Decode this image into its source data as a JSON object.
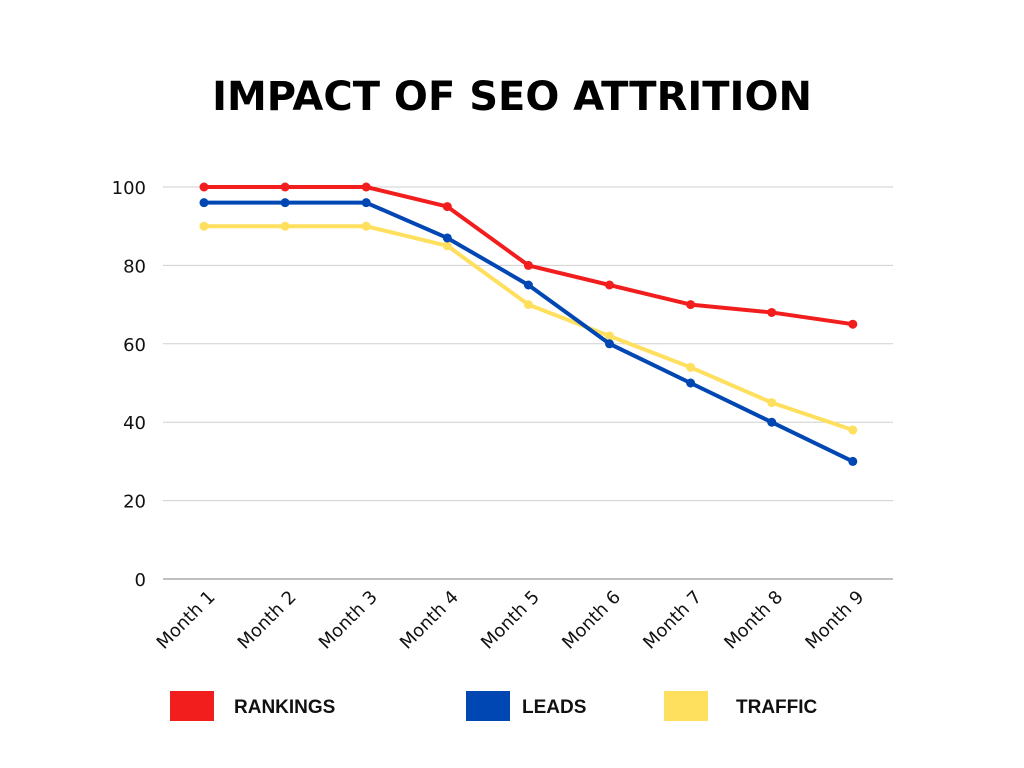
{
  "chart_data": {
    "type": "line",
    "title": "IMPACT OF SEO ATTRITION",
    "xlabel": "",
    "ylabel": "",
    "ylim": [
      0,
      100
    ],
    "yticks": [
      "0",
      "20",
      "40",
      "60",
      "80",
      "100"
    ],
    "grid": true,
    "legend_position": "bottom",
    "categories": [
      "Month 1",
      "Month 2",
      "Month 3",
      "Month 4",
      "Month 5",
      "Month 6",
      "Month 7",
      "Month 8",
      "Month 9"
    ],
    "series": [
      {
        "name": "RANKINGS",
        "color": "#f21d1d",
        "values": [
          100,
          100,
          100,
          95,
          80,
          75,
          70,
          68,
          65
        ]
      },
      {
        "name": "LEADS",
        "color": "#0047b3",
        "values": [
          96,
          96,
          96,
          87,
          75,
          60,
          50,
          40,
          30
        ]
      },
      {
        "name": "TRAFFIC",
        "color": "#ffdf5e",
        "values": [
          90,
          90,
          90,
          85,
          70,
          62,
          54,
          45,
          38
        ]
      }
    ]
  }
}
